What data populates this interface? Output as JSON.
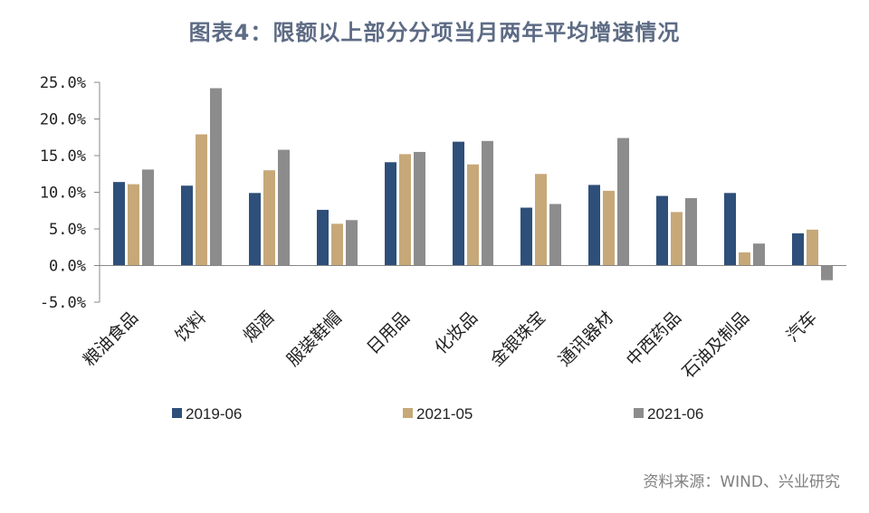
{
  "chart_data": {
    "type": "bar",
    "title": "图表4：限额以上部分分项当月两年平均增速情况",
    "xlabel": "",
    "ylabel": "",
    "ylim": [
      -5,
      25
    ],
    "yticks": [
      "-5.0%",
      "0.0%",
      "5.0%",
      "10.0%",
      "15.0%",
      "20.0%",
      "25.0%"
    ],
    "ytick_values": [
      -5,
      0,
      5,
      10,
      15,
      20,
      25
    ],
    "grid": false,
    "legend_position": "bottom",
    "categories": [
      "粮油食品",
      "饮料",
      "烟酒",
      "服装鞋帽",
      "日用品",
      "化妆品",
      "金银珠宝",
      "通讯器材",
      "中西药品",
      "石油及制品",
      "汽车"
    ],
    "series": [
      {
        "name": "2019-06",
        "color": "#2e4f79",
        "values": [
          11.4,
          10.9,
          9.9,
          7.6,
          14.1,
          16.9,
          7.9,
          11.0,
          9.5,
          9.9,
          4.4
        ]
      },
      {
        "name": "2021-05",
        "color": "#c7a878",
        "values": [
          11.1,
          17.9,
          13.0,
          5.7,
          15.2,
          13.8,
          12.5,
          10.2,
          7.3,
          1.8,
          4.9
        ]
      },
      {
        "name": "2021-06",
        "color": "#8c8c8c",
        "values": [
          13.1,
          24.2,
          15.8,
          6.2,
          15.5,
          17.0,
          8.4,
          17.4,
          9.2,
          3.0,
          -2.0
        ]
      }
    ]
  },
  "source": "资料来源：WIND、兴业研究"
}
